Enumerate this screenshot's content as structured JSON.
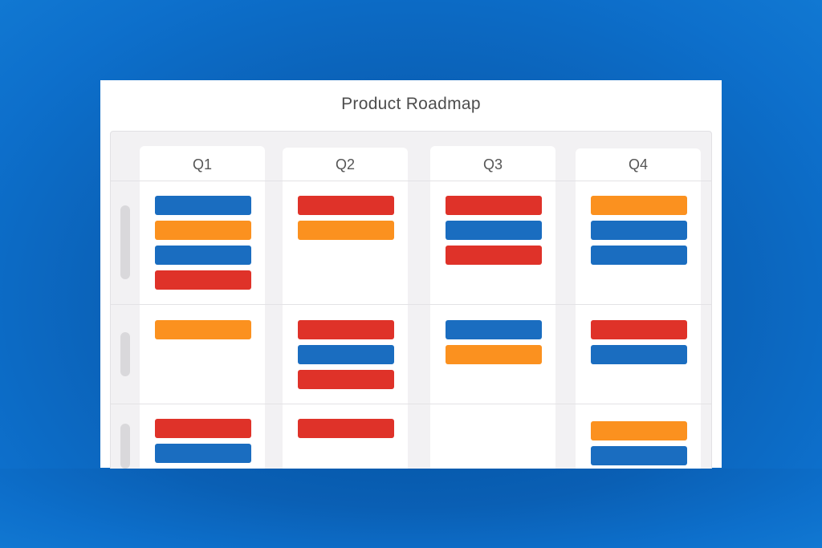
{
  "title": "Product Roadmap",
  "colors": {
    "blue": "#1a6dc0",
    "orange": "#fb911f",
    "red": "#df3229"
  },
  "columns": [
    {
      "label": "Q1",
      "rows": [
        [
          "blue",
          "orange",
          "blue",
          "red"
        ],
        [
          "orange"
        ],
        [
          "red",
          "blue"
        ]
      ]
    },
    {
      "label": "Q2",
      "rows": [
        [
          "red",
          "orange"
        ],
        [
          "red",
          "blue",
          "red"
        ],
        [
          "red"
        ]
      ]
    },
    {
      "label": "Q3",
      "rows": [
        [
          "red",
          "blue",
          "red"
        ],
        [
          "blue",
          "orange"
        ],
        []
      ]
    },
    {
      "label": "Q4",
      "rows": [
        [
          "orange",
          "blue",
          "blue"
        ],
        [
          "red",
          "blue"
        ],
        [
          "orange",
          "blue"
        ]
      ]
    }
  ]
}
